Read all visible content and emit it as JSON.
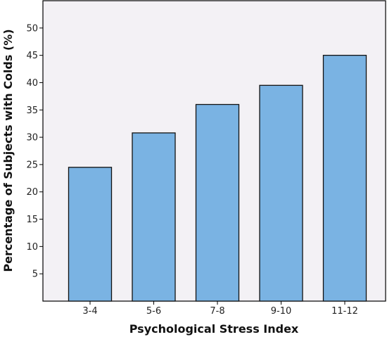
{
  "chart_data": {
    "type": "bar",
    "title": "",
    "xlabel": "Psychological Stress Index",
    "ylabel": "Percentage of Subjects with Colds (%)",
    "categories": [
      "3-4",
      "5-6",
      "7-8",
      "9-10",
      "11-12"
    ],
    "values": [
      24.5,
      30.8,
      36.0,
      39.5,
      45.0
    ],
    "ylim": [
      0,
      55
    ],
    "yticks": [
      5,
      10,
      15,
      20,
      25,
      30,
      35,
      40,
      45,
      50
    ],
    "grid": false,
    "legend": "none",
    "colors": {
      "bar_fill": "#7ab3e3",
      "bar_stroke": "#111111",
      "plot_background": "#f3f1f5",
      "axis": "#000000"
    }
  }
}
